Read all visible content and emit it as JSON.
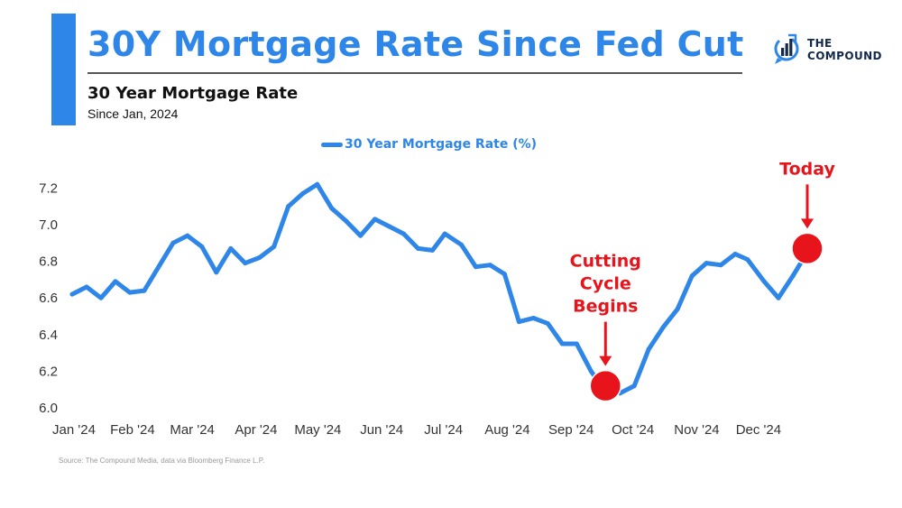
{
  "header": {
    "title": "30Y Mortgage Rate Since Fed Cut",
    "subtitle": "30 Year Mortgage Rate",
    "subsubtitle": "Since Jan, 2024"
  },
  "logo": {
    "line1": "THE",
    "line2": "COMPOUND"
  },
  "source": "Source: The Compound Media, data via Bloomberg Finance L.P.",
  "colors": {
    "accent": "#2E86E8",
    "annotation": "#E8141B",
    "logo_navy": "#12294B"
  },
  "chart_data": {
    "type": "line",
    "title": "30 Year Mortgage Rate",
    "legend": {
      "position": "top-center"
    },
    "grid": false,
    "x_tick_labels": [
      "Jan '24",
      "Feb '24",
      "Mar '24",
      "Apr '24",
      "May '24",
      "Jun '24",
      "Jul '24",
      "Aug '24",
      "Sep '24",
      "Oct '24",
      "Nov '24",
      "Dec '24"
    ],
    "y_ticks": [
      "6.0",
      "6.2",
      "6.4",
      "6.6",
      "6.8",
      "7.0",
      "7.2"
    ],
    "ylim": [
      6.0,
      7.25
    ],
    "series": [
      {
        "name": "30 Year Mortgage Rate (%)",
        "color": "#2E86E8",
        "x": [
          "2024-01-04",
          "2024-01-11",
          "2024-01-18",
          "2024-01-25",
          "2024-02-01",
          "2024-02-08",
          "2024-02-15",
          "2024-02-22",
          "2024-02-29",
          "2024-03-07",
          "2024-03-14",
          "2024-03-21",
          "2024-03-28",
          "2024-04-04",
          "2024-04-11",
          "2024-04-18",
          "2024-04-25",
          "2024-05-02",
          "2024-05-09",
          "2024-05-16",
          "2024-05-23",
          "2024-05-30",
          "2024-06-06",
          "2024-06-13",
          "2024-06-20",
          "2024-06-27",
          "2024-07-03",
          "2024-07-11",
          "2024-07-18",
          "2024-07-25",
          "2024-08-01",
          "2024-08-08",
          "2024-08-15",
          "2024-08-22",
          "2024-08-29",
          "2024-09-05",
          "2024-09-12",
          "2024-09-19",
          "2024-09-26",
          "2024-10-03",
          "2024-10-10",
          "2024-10-17",
          "2024-10-24",
          "2024-10-31",
          "2024-11-07",
          "2024-11-14",
          "2024-11-21",
          "2024-11-27",
          "2024-12-05",
          "2024-12-12",
          "2024-12-19",
          "2024-12-26"
        ],
        "values": [
          6.62,
          6.66,
          6.6,
          6.69,
          6.63,
          6.64,
          6.77,
          6.9,
          6.94,
          6.88,
          6.74,
          6.87,
          6.79,
          6.82,
          6.88,
          7.1,
          7.17,
          7.22,
          7.09,
          7.02,
          6.94,
          7.03,
          6.99,
          6.95,
          6.87,
          6.86,
          6.95,
          6.89,
          6.77,
          6.78,
          6.73,
          6.47,
          6.49,
          6.46,
          6.35,
          6.35,
          6.2,
          6.09,
          6.08,
          6.12,
          6.32,
          6.44,
          6.54,
          6.72,
          6.79,
          6.78,
          6.84,
          6.81,
          6.69,
          6.6,
          6.72,
          6.85
        ]
      }
    ],
    "annotations": [
      {
        "text": [
          "Cutting",
          "Cycle",
          "Begins"
        ],
        "x": "2024-09-19",
        "y": 6.12
      },
      {
        "text": [
          "Today"
        ],
        "x": "2024-12-26",
        "y": 6.87
      }
    ]
  }
}
